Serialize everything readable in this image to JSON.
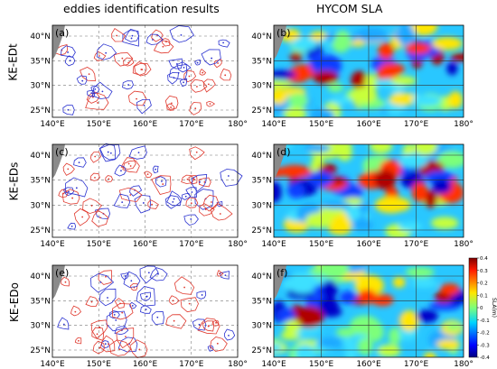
{
  "columns": {
    "left": "eddies identification results",
    "right": "HYCOM SLA"
  },
  "rows": [
    {
      "label": "KE-EDt",
      "left_tag": "(a)",
      "right_tag": "(b)"
    },
    {
      "label": "KE-EDs",
      "left_tag": "(c)",
      "right_tag": "(d)"
    },
    {
      "label": "KE-EDo",
      "left_tag": "(e)",
      "right_tag": "(f)"
    }
  ],
  "axes": {
    "x_ticks": [
      "140°E",
      "150°E",
      "160°E",
      "170°E",
      "180°"
    ],
    "y_ticks": [
      "40°N",
      "35°N",
      "30°N",
      "25°N"
    ]
  },
  "colorbar": {
    "label": "SLA(m)",
    "ticks": [
      "0.4",
      "0.3",
      "0.2",
      "0.1",
      "0",
      "-0.1",
      "-0.2",
      "-0.3",
      "-0.4"
    ]
  },
  "colors": {
    "anticyclonic": "#e03a2f",
    "cyclonic": "#2a32d0",
    "land": "#8a8a8a",
    "grid": "#777777"
  }
}
